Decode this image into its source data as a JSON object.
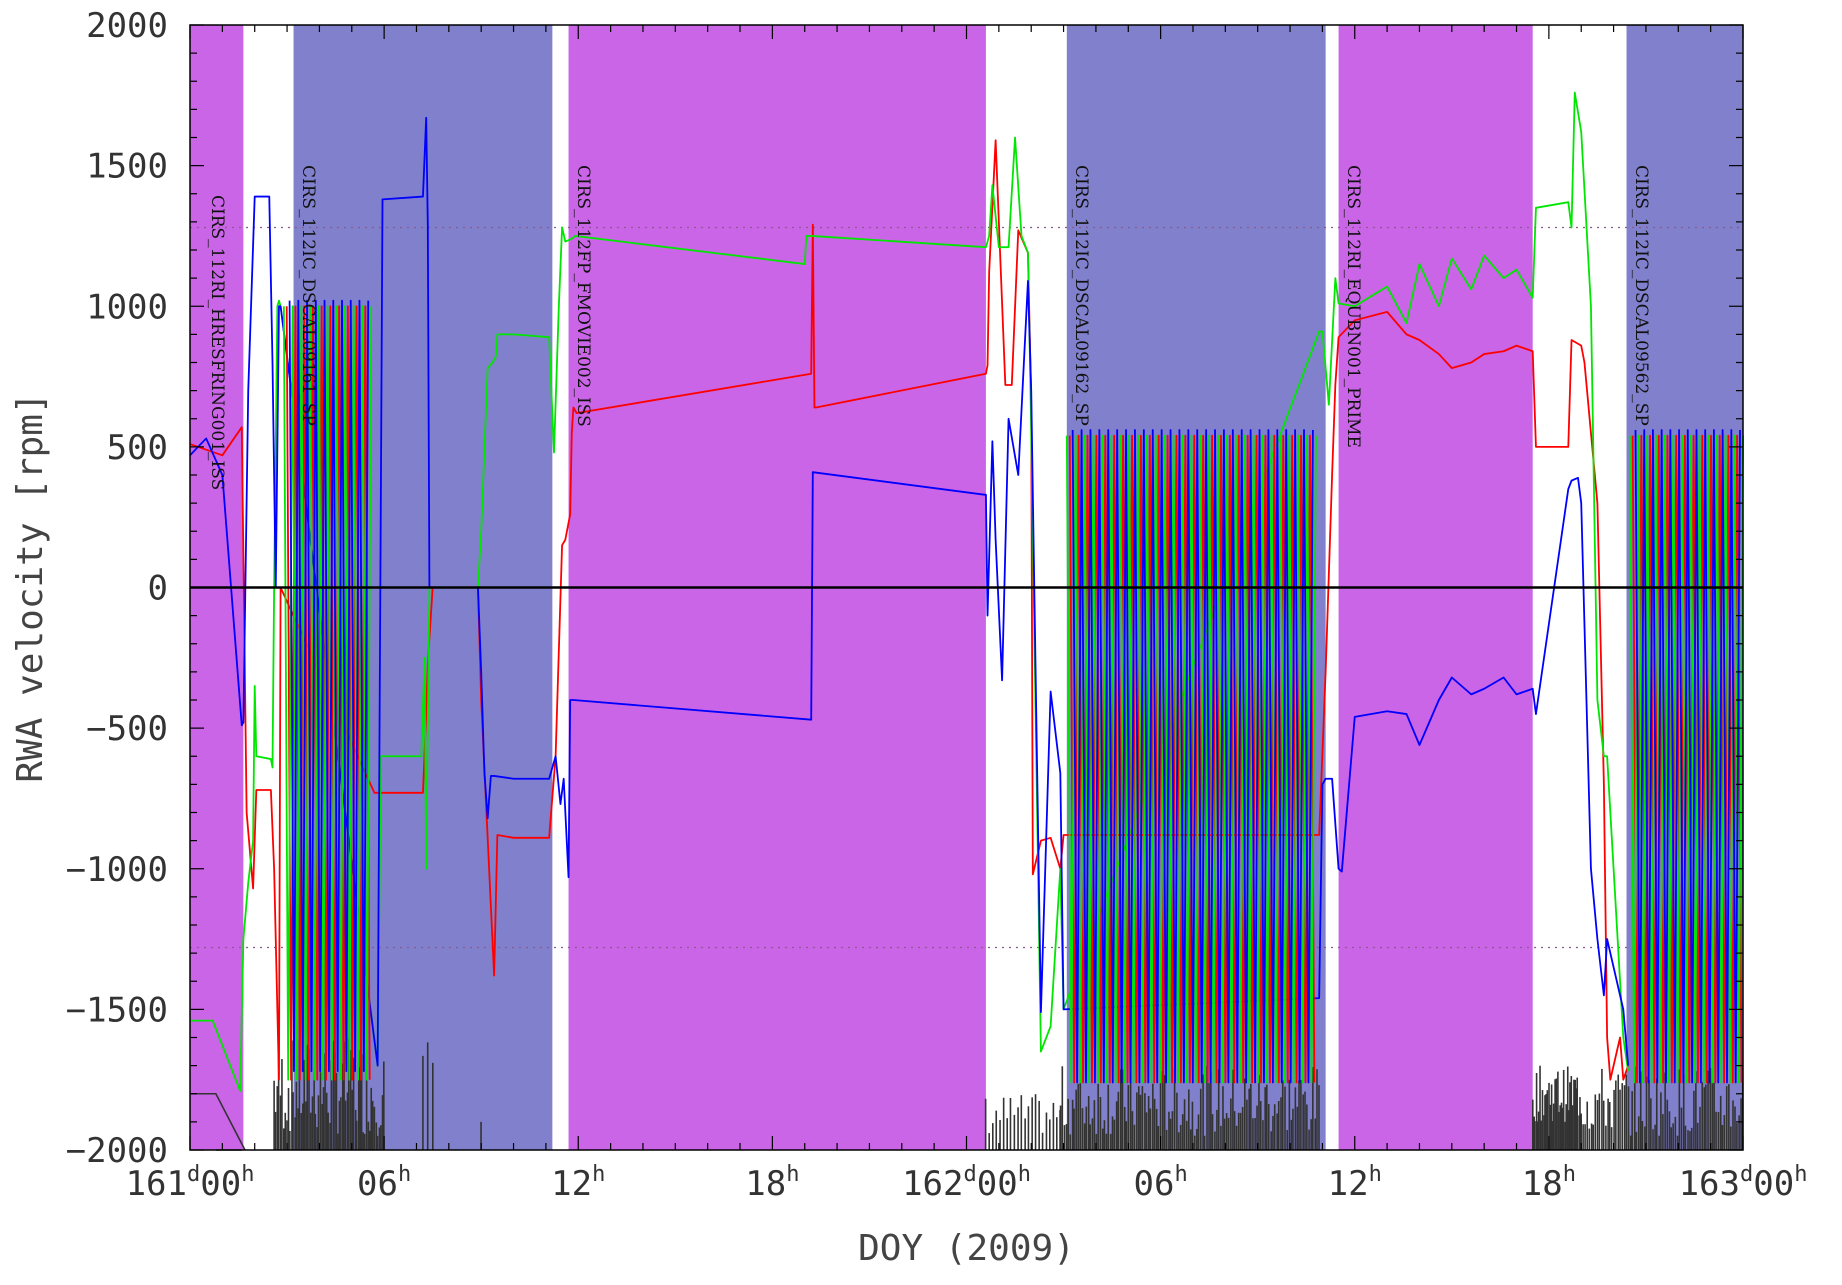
{
  "chart_data": {
    "type": "line",
    "xlabel": "DOY (2009)",
    "ylabel": "RWA velocity [rpm]",
    "xlim": [
      "161d00h",
      "163d00h"
    ],
    "ylim": [
      -2000,
      2000
    ],
    "x_unit": "hours",
    "x_ticks": [
      {
        "hours": 0,
        "text": "161",
        "sup": "d",
        "text2": "00",
        "sup2": "h"
      },
      {
        "hours": 6,
        "text": "06",
        "sup": "h"
      },
      {
        "hours": 12,
        "text": "12",
        "sup": "h"
      },
      {
        "hours": 18,
        "text": "18",
        "sup": "h"
      },
      {
        "hours": 24,
        "text": "162",
        "sup": "d",
        "text2": "00",
        "sup2": "h"
      },
      {
        "hours": 30,
        "text": "06",
        "sup": "h"
      },
      {
        "hours": 36,
        "text": "12",
        "sup": "h"
      },
      {
        "hours": 42,
        "text": "18",
        "sup": "h"
      },
      {
        "hours": 48,
        "text": "163",
        "sup": "d",
        "text2": "00",
        "sup2": "h"
      }
    ],
    "y_ticks": [
      {
        "value": 2000,
        "text": "2000"
      },
      {
        "value": 1500,
        "text": "1500"
      },
      {
        "value": 1000,
        "text": "1000"
      },
      {
        "value": 500,
        "text": "500"
      },
      {
        "value": 0,
        "text": "0"
      },
      {
        "value": -500,
        "text": "−500"
      },
      {
        "value": -1000,
        "text": "−1000"
      },
      {
        "value": -1500,
        "text": "−1500"
      },
      {
        "value": -2000,
        "text": "−2000"
      }
    ],
    "zero_line": 0,
    "limit_lines": [
      1280,
      -1280
    ],
    "colors": {
      "magenta_band": "#c965e6",
      "blue_band": "#8080cc",
      "red": "#ff0000",
      "green": "#00e600",
      "blue": "#0000ff",
      "dark": "#333333",
      "zero": "#000000",
      "limit": "#8a5a8a"
    },
    "bands": [
      {
        "start": 0.0,
        "end": 1.65,
        "color": "magenta"
      },
      {
        "start": 3.2,
        "end": 11.2,
        "color": "blue"
      },
      {
        "start": 11.7,
        "end": 24.6,
        "color": "magenta"
      },
      {
        "start": 27.1,
        "end": 35.1,
        "color": "blue"
      },
      {
        "start": 35.5,
        "end": 41.5,
        "color": "magenta"
      },
      {
        "start": 44.4,
        "end": 48.0,
        "color": "blue"
      }
    ],
    "observation_labels": [
      {
        "hours": 0.5,
        "text": "CIRS_112RI_HRESFRING001_ISS"
      },
      {
        "hours": 3.3,
        "text": "CIRS_112IC_DSCAL09161_SP"
      },
      {
        "hours": 11.8,
        "text": "CIRS_112FP_FMOVIE002_ISS"
      },
      {
        "hours": 27.2,
        "text": "CIRS_112IC_DSCAL09162_SP"
      },
      {
        "hours": 35.6,
        "text": "CIRS_112RI_EQUBN001_PRIME"
      },
      {
        "hours": 44.5,
        "text": "CIRS_112IC_DSCAL09562_SP"
      }
    ],
    "series": [
      {
        "color": "red",
        "x": [
          0,
          1.0,
          1.6,
          1.75,
          1.95,
          2.05,
          2.5,
          2.6,
          2.7,
          2.75,
          2.8,
          5.7,
          5.8,
          7.2,
          7.3,
          7.35,
          7.5,
          8.9,
          9.0,
          9.4,
          9.5,
          10.0,
          11.1,
          11.3,
          11.5,
          11.6,
          11.75,
          11.8,
          11.85,
          11.95,
          19.2,
          19.25,
          19.3,
          19.35,
          24.6,
          24.65,
          24.7,
          24.9,
          25.2,
          25.4,
          25.6,
          25.9,
          26.0,
          26.05,
          26.3,
          26.6,
          26.9,
          27.0,
          34.9,
          35.1,
          35.3,
          35.4,
          35.5,
          36.0,
          37.0,
          37.6,
          38.0,
          38.6,
          39.0,
          39.6,
          40.0,
          40.6,
          41.0,
          41.5,
          41.6,
          42.6,
          42.7,
          43.0,
          43.1,
          43.5,
          43.7,
          43.8,
          43.9,
          44.2,
          44.3,
          44.45
        ],
        "y": [
          510,
          470,
          570,
          -800,
          -1070,
          -720,
          -720,
          -1000,
          -1500,
          -1750,
          0,
          -730,
          -730,
          -730,
          -450,
          -270,
          0,
          0,
          -400,
          -1380,
          -880,
          -890,
          -890,
          -600,
          150,
          170,
          260,
          550,
          640,
          620,
          760,
          1290,
          640,
          640,
          760,
          790,
          1120,
          1590,
          720,
          720,
          1270,
          1190,
          660,
          -1020,
          -900,
          -890,
          -1000,
          -880,
          -880,
          -300,
          400,
          720,
          890,
          950,
          980,
          900,
          880,
          830,
          780,
          800,
          830,
          840,
          860,
          840,
          500,
          500,
          880,
          860,
          800,
          300,
          -700,
          -1600,
          -1750,
          -1600,
          -1750,
          -1700
        ]
      },
      {
        "color": "green",
        "x": [
          0,
          0.7,
          1.55,
          1.65,
          1.8,
          1.95,
          2.0,
          2.05,
          2.5,
          2.55,
          2.6,
          2.7,
          2.75,
          2.8,
          5.8,
          5.9,
          7.15,
          7.25,
          7.3,
          7.4,
          7.5,
          8.9,
          9.0,
          9.2,
          9.35,
          9.45,
          9.5,
          10.0,
          11.1,
          11.25,
          11.4,
          11.5,
          11.6,
          11.8,
          11.9,
          19.0,
          19.05,
          19.1,
          19.2,
          24.6,
          24.7,
          24.8,
          25.0,
          25.3,
          25.5,
          25.7,
          25.9,
          26.0,
          26.3,
          26.6,
          26.9,
          27.0,
          34.9,
          35.0,
          35.2,
          35.4,
          35.5,
          36.0,
          37.0,
          37.6,
          38.0,
          38.6,
          39.0,
          39.6,
          40.0,
          40.6,
          41.0,
          41.5,
          41.6,
          42.6,
          42.7,
          42.8,
          43.0,
          43.3,
          43.5,
          43.7,
          43.8,
          44.3,
          44.45
        ],
        "y": [
          -1540,
          -1540,
          -1790,
          -1250,
          -1050,
          -900,
          -350,
          -600,
          -610,
          -640,
          0,
          1000,
          1020,
          1000,
          -1700,
          -600,
          -600,
          -250,
          -1000,
          0,
          0,
          0,
          200,
          780,
          800,
          820,
          900,
          900,
          890,
          480,
          1000,
          1280,
          1230,
          1240,
          1250,
          1150,
          1250,
          1250,
          1250,
          1210,
          1250,
          1430,
          1210,
          1210,
          1600,
          1250,
          1190,
          560,
          -1650,
          -1560,
          -1000,
          -1500,
          910,
          910,
          650,
          1100,
          1010,
          1000,
          1070,
          940,
          1150,
          1000,
          1170,
          1060,
          1180,
          1100,
          1130,
          1030,
          1350,
          1370,
          1280,
          1760,
          1620,
          1000,
          -400,
          -600,
          -600,
          -1600,
          -1720
        ]
      },
      {
        "color": "blue",
        "x": [
          0,
          0.5,
          1.0,
          1.6,
          1.65,
          1.8,
          2.0,
          2.05,
          2.45,
          2.55,
          2.65,
          2.7,
          2.75,
          2.8,
          5.8,
          5.95,
          7.2,
          7.3,
          7.35,
          7.4,
          7.6,
          8.9,
          9.0,
          9.1,
          9.2,
          9.3,
          9.4,
          10.0,
          11.1,
          11.3,
          11.45,
          11.55,
          11.7,
          11.75,
          11.85,
          19.2,
          19.25,
          24.55,
          24.6,
          24.65,
          24.8,
          24.9,
          25.1,
          25.3,
          25.6,
          25.9,
          26.0,
          26.3,
          26.6,
          26.9,
          27.0,
          34.9,
          35.0,
          35.1,
          35.3,
          35.5,
          35.6,
          36.0,
          37.0,
          37.6,
          38.0,
          38.6,
          39.0,
          39.6,
          40.0,
          40.6,
          41.0,
          41.5,
          41.6,
          42.6,
          42.7,
          42.9,
          43.0,
          43.3,
          43.5,
          43.7,
          43.8,
          44.3,
          44.45
        ],
        "y": [
          470,
          530,
          400,
          -490,
          -480,
          700,
          1390,
          1390,
          1390,
          800,
          0,
          500,
          1000,
          1000,
          -1700,
          1380,
          1390,
          1670,
          1290,
          0,
          0,
          0,
          -300,
          -660,
          -820,
          -670,
          -670,
          -680,
          -680,
          -600,
          -770,
          -680,
          -1030,
          -400,
          -400,
          -470,
          410,
          330,
          330,
          -100,
          520,
          170,
          -330,
          600,
          400,
          1090,
          700,
          -1510,
          -370,
          -660,
          -1500,
          -1460,
          -700,
          -680,
          -680,
          -1000,
          -1010,
          -460,
          -440,
          -450,
          -560,
          -400,
          -320,
          -380,
          -360,
          -320,
          -380,
          -360,
          -450,
          350,
          380,
          390,
          300,
          -1000,
          -1250,
          -1450,
          -1250,
          -1500,
          -1700
        ]
      }
    ],
    "oscillations": [
      {
        "series": "red",
        "start": 2.9,
        "end": 5.6,
        "n": 10,
        "hi": 1000,
        "lo": -1750,
        "phase": 0.33
      },
      {
        "series": "green",
        "start": 2.9,
        "end": 5.6,
        "n": 10,
        "hi": 1000,
        "lo": -1750,
        "phase": 0.0
      },
      {
        "series": "blue",
        "start": 2.9,
        "end": 5.6,
        "n": 10,
        "hi": 1020,
        "lo": -1720,
        "phase": 0.66
      },
      {
        "series": "red",
        "start": 27.1,
        "end": 34.8,
        "n": 28,
        "hi": 540,
        "lo": -1760,
        "phase": 0.33
      },
      {
        "series": "green",
        "start": 27.1,
        "end": 34.8,
        "n": 28,
        "hi": 540,
        "lo": -1760,
        "phase": 0.0
      },
      {
        "series": "blue",
        "start": 27.1,
        "end": 34.8,
        "n": 28,
        "hi": 560,
        "lo": -1760,
        "phase": 0.66
      },
      {
        "series": "red",
        "start": 44.5,
        "end": 48.0,
        "n": 13,
        "hi": 540,
        "lo": -1760,
        "phase": 0.33
      },
      {
        "series": "green",
        "start": 44.5,
        "end": 48.0,
        "n": 13,
        "hi": 540,
        "lo": -1760,
        "phase": 0.0
      },
      {
        "series": "blue",
        "start": 44.5,
        "end": 48.0,
        "n": 13,
        "hi": 560,
        "lo": -1760,
        "phase": 0.66
      }
    ],
    "spikes": [
      {
        "series": "dark",
        "x": [
          0,
          0.8,
          1.7
        ],
        "y": [
          -1800,
          -1800,
          -2000
        ]
      },
      {
        "series": "dark",
        "x": [
          0.8,
          1.6
        ],
        "y": [
          -2000,
          -2000
        ]
      }
    ],
    "spike_clusters": [
      {
        "start": 2.6,
        "end": 6.0,
        "count": 70,
        "min_height": -1950,
        "max_height": -1600
      },
      {
        "start": 7.2,
        "end": 7.5,
        "count": 3,
        "min_height": -1850,
        "max_height": -1600
      },
      {
        "start": 9.0,
        "end": 9.05,
        "count": 1,
        "min_height": -1900,
        "max_height": -1900
      },
      {
        "start": 24.6,
        "end": 26.9,
        "count": 22,
        "min_height": -1950,
        "max_height": -1800
      },
      {
        "start": 26.9,
        "end": 34.9,
        "count": 130,
        "min_height": -1950,
        "max_height": -1700
      },
      {
        "start": 41.5,
        "end": 43.0,
        "count": 40,
        "min_height": -1900,
        "max_height": -1700
      },
      {
        "start": 43.0,
        "end": 48.0,
        "count": 80,
        "min_height": -1950,
        "max_height": -1700
      }
    ]
  }
}
